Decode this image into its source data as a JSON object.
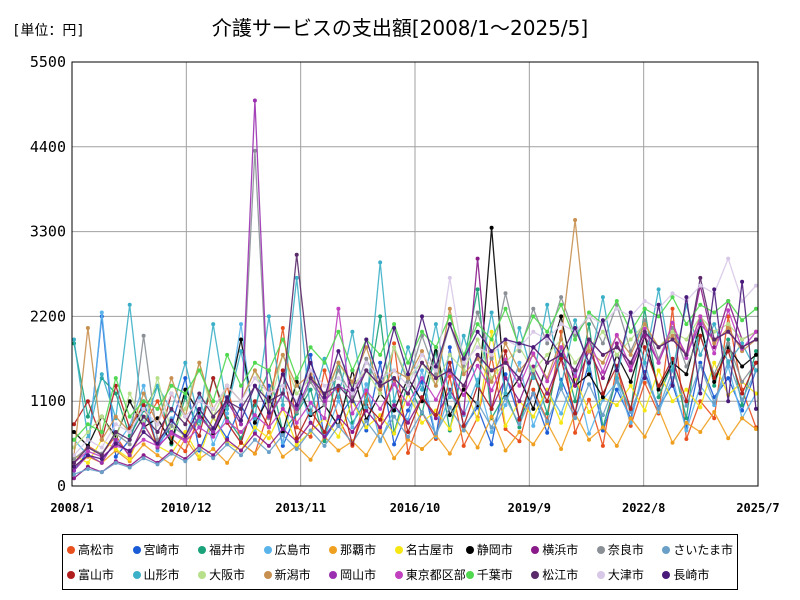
{
  "unit_label": "[単位：円]",
  "chart_data": {
    "type": "line",
    "title": "介護サービスの支出額[2008/1～2025/5]",
    "xlabel": "",
    "ylabel": "",
    "ylim": [
      0,
      5500
    ],
    "yticks": [
      "0",
      "1100",
      "2200",
      "3300",
      "4400",
      "5500"
    ],
    "xticks": [
      "2008/1",
      "2010/12",
      "2013/11",
      "2016/10",
      "2019/9",
      "2022/8",
      "2025/7"
    ],
    "x_range": [
      "2008-01",
      "2025-07"
    ],
    "grid": true,
    "legend_position": "bottom",
    "series": [
      {
        "name": "高松市",
        "color": "#e8501e",
        "values": [
          300,
          520,
          410,
          650,
          380,
          800,
          1100,
          620,
          450,
          900,
          700,
          1300,
          560,
          420,
          980,
          2050,
          760,
          640,
          1500,
          880,
          520,
          1200,
          700,
          1850,
          430,
          960,
          610,
          1420,
          520,
          890,
          1680,
          740,
          580,
          1250,
          860,
          2000,
          690,
          1120,
          520,
          1560,
          780,
          1340,
          940,
          2300,
          610,
          1100,
          880,
          2200,
          1250,
          760
        ]
      },
      {
        "name": "宮崎市",
        "color": "#1a5bd6",
        "values": [
          200,
          450,
          2200,
          380,
          600,
          1100,
          520,
          780,
          1400,
          460,
          890,
          620,
          1050,
          700,
          1300,
          520,
          940,
          1700,
          610,
          880,
          1150,
          720,
          1600,
          540,
          980,
          1350,
          630,
          1800,
          760,
          1020,
          540,
          1450,
          880,
          1200,
          690,
          1380,
          950,
          1600,
          720,
          1250,
          880,
          1480,
          1020,
          1320,
          760,
          1600,
          1150,
          1400,
          980,
          1500
        ]
      },
      {
        "name": "福井市",
        "color": "#1aa37a",
        "values": [
          1850,
          900,
          1400,
          1200,
          650,
          980,
          1300,
          540,
          1150,
          760,
          1400,
          880,
          620,
          1050,
          1500,
          700,
          940,
          1250,
          580,
          1600,
          820,
          1100,
          2200,
          690,
          1350,
          940,
          1750,
          720,
          1600,
          2550,
          880,
          1200,
          760,
          1500,
          940,
          1800,
          1100,
          2100,
          760,
          1400,
          980,
          2300,
          1150,
          1600,
          880,
          2150,
          1300,
          1900,
          1050,
          1750
        ]
      },
      {
        "name": "広島市",
        "color": "#5ab4ea",
        "values": [
          600,
          400,
          2250,
          520,
          780,
          1300,
          460,
          880,
          620,
          1150,
          540,
          940,
          2100,
          700,
          1250,
          560,
          1400,
          820,
          640,
          1100,
          760,
          1320,
          580,
          1000,
          860,
          1500,
          640,
          1200,
          920,
          1380,
          700,
          1050,
          1600,
          780,
          1240,
          940,
          1450,
          680,
          1120,
          1350,
          820,
          1600,
          960,
          1400,
          720,
          1300,
          1050,
          1550,
          880,
          1200
        ]
      },
      {
        "name": "那覇市",
        "color": "#f0a020",
        "values": [
          250,
          380,
          300,
          460,
          320,
          540,
          400,
          280,
          620,
          350,
          480,
          300,
          560,
          420,
          700,
          380,
          520,
          340,
          640,
          460,
          580,
          400,
          720,
          360,
          600,
          480,
          660,
          420,
          760,
          500,
          900,
          460,
          700,
          540,
          820,
          480,
          940,
          600,
          760,
          520,
          880,
          640,
          1000,
          560,
          820,
          700,
          960,
          620,
          880,
          740
        ]
      },
      {
        "name": "名古屋市",
        "color": "#f5e614",
        "values": [
          400,
          300,
          600,
          480,
          350,
          800,
          520,
          420,
          700,
          380,
          900,
          560,
          460,
          760,
          620,
          1000,
          540,
          700,
          880,
          640,
          1100,
          760,
          920,
          680,
          1200,
          820,
          980,
          740,
          1300,
          860,
          2000,
          780,
          1100,
          900,
          1250,
          820,
          1400,
          960,
          1150,
          1050,
          1300,
          980,
          1500,
          1100,
          1250,
          1020,
          1600,
          1180,
          1350,
          1200
        ]
      },
      {
        "name": "静岡市",
        "color": "#000000",
        "values": [
          700,
          520,
          900,
          640,
          1100,
          760,
          880,
          560,
          1250,
          940,
          680,
          1050,
          1900,
          820,
          1150,
          700,
          1350,
          920,
          1050,
          780,
          1500,
          860,
          1200,
          980,
          1400,
          1100,
          1800,
          920,
          1250,
          1050,
          3350,
          1150,
          1400,
          1000,
          1600,
          2200,
          1300,
          1450,
          1150,
          1700,
          1350,
          1950,
          1250,
          1600,
          1450,
          2100,
          1350,
          1800,
          1550,
          1700
        ]
      },
      {
        "name": "横浜市",
        "color": "#8a1a8a",
        "values": [
          100,
          250,
          180,
          320,
          260,
          400,
          300,
          450,
          350,
          520,
          400,
          600,
          460,
          680,
          520,
          740,
          580,
          820,
          640,
          900,
          700,
          980,
          760,
          1050,
          820,
          1150,
          880,
          1250,
          940,
          2950,
          1000,
          1400,
          1100,
          1550,
          1200,
          1650,
          1300,
          1750,
          1400,
          1850,
          1500,
          1950,
          1600,
          2050,
          1700,
          2600,
          1800,
          2400,
          1900,
          2000
        ]
      },
      {
        "name": "奈良市",
        "color": "#8a9096",
        "values": [
          350,
          500,
          420,
          680,
          540,
          1950,
          600,
          780,
          650,
          900,
          720,
          1100,
          800,
          4350,
          880,
          1200,
          960,
          1350,
          1050,
          1500,
          1150,
          1650,
          1250,
          1800,
          1350,
          1950,
          1450,
          2100,
          1550,
          2250,
          1650,
          2500,
          1750,
          2300,
          1850,
          2450,
          1950,
          2200,
          1850,
          2350,
          1750,
          2150,
          1650,
          2050,
          1550,
          1950,
          1450,
          1850,
          1350,
          1600
        ]
      },
      {
        "name": "さいたま市",
        "color": "#6aa0c8",
        "values": [
          150,
          220,
          180,
          300,
          240,
          360,
          280,
          420,
          320,
          480,
          360,
          540,
          400,
          600,
          440,
          660,
          480,
          720,
          520,
          780,
          560,
          840,
          600,
          900,
          640,
          960,
          680,
          1020,
          720,
          1080,
          760,
          1140,
          800,
          1200,
          840,
          1260,
          880,
          1320,
          920,
          1380,
          960,
          1440,
          1000,
          1500,
          1040,
          1560,
          1080,
          1620,
          1120,
          1500
        ]
      },
      {
        "name": "富山市",
        "color": "#b01e1e",
        "values": [
          800,
          1100,
          600,
          1300,
          750,
          1050,
          500,
          1200,
          900,
          650,
          1400,
          820,
          560,
          1100,
          760,
          1500,
          620,
          980,
          700,
          1250,
          540,
          1050,
          860,
          1400,
          700,
          1150,
          920,
          1600,
          780,
          1300,
          1000,
          1750,
          860,
          1450,
          1100,
          1650,
          940,
          1900,
          1200,
          1550,
          1000,
          1800,
          1300,
          1650,
          1100,
          1950,
          1400,
          1750,
          1200,
          1600
        ]
      },
      {
        "name": "山形市",
        "color": "#3cb0c8",
        "values": [
          1900,
          620,
          1450,
          880,
          2350,
          760,
          1300,
          980,
          1600,
          840,
          2100,
          1000,
          1750,
          880,
          2200,
          1050,
          2700,
          940,
          1650,
          1150,
          2000,
          1020,
          2900,
          1100,
          1800,
          1250,
          2100,
          1150,
          1950,
          1300,
          2250,
          1200,
          2050,
          1400,
          2350,
          1300,
          2150,
          1500,
          2450,
          1400,
          2250,
          1600,
          2550,
          1500,
          2350,
          1700,
          2100,
          1600,
          1850,
          1500
        ]
      },
      {
        "name": "大阪市",
        "color": "#b8e08a",
        "values": [
          500,
          700,
          900,
          600,
          1200,
          800,
          1400,
          700,
          1000,
          1600,
          900,
          1300,
          1100,
          1500,
          1000,
          1700,
          1200,
          1400,
          1100,
          1600,
          1300,
          1500,
          1200,
          1800,
          1400,
          1600,
          1300,
          1700,
          1500,
          1900,
          1400,
          1600,
          1800,
          1500,
          1700,
          1900,
          1600,
          1800,
          2000,
          1700,
          1900,
          2100,
          1800,
          2000,
          1900,
          2200,
          2000,
          2100,
          1900,
          2000
        ]
      },
      {
        "name": "新潟市",
        "color": "#c89050",
        "values": [
          400,
          2050,
          600,
          900,
          700,
          1200,
          800,
          1400,
          900,
          1600,
          1000,
          1300,
          1100,
          1500,
          1200,
          1700,
          1300,
          1450,
          1150,
          1600,
          1350,
          1800,
          1250,
          1500,
          1400,
          1750,
          1300,
          2300,
          1450,
          1650,
          1350,
          1850,
          1500,
          1700,
          1400,
          1900,
          3450,
          1750,
          1600,
          1950,
          1700,
          2100,
          1800,
          1950,
          1700,
          2200,
          1850,
          2050,
          1750,
          1900
        ]
      },
      {
        "name": "岡山市",
        "color": "#9a30b0",
        "values": [
          200,
          400,
          300,
          600,
          400,
          800,
          500,
          700,
          600,
          900,
          700,
          1100,
          800,
          5000,
          900,
          1200,
          1000,
          1400,
          1100,
          1300,
          1200,
          1500,
          1300,
          1400,
          1200,
          1600,
          1400,
          1500,
          1300,
          1700,
          1500,
          1600,
          1400,
          1800,
          1600,
          1700,
          1500,
          1900,
          1700,
          1800,
          1600,
          2000,
          1800,
          1900,
          1700,
          2100,
          1900,
          2000,
          1800,
          1900
        ]
      },
      {
        "name": "東京都区部",
        "color": "#c040c0",
        "values": [
          300,
          450,
          380,
          520,
          460,
          600,
          520,
          680,
          580,
          760,
          640,
          840,
          700,
          920,
          760,
          1000,
          820,
          1080,
          880,
          2300,
          940,
          1240,
          1000,
          1320,
          1060,
          1400,
          1120,
          1480,
          1180,
          1560,
          1240,
          1640,
          1300,
          1720,
          1360,
          1800,
          1420,
          1880,
          1480,
          1960,
          1540,
          2040,
          1600,
          2120,
          1660,
          2200,
          1720,
          2280,
          1780,
          2000
        ]
      },
      {
        "name": "千葉市",
        "color": "#50d850",
        "values": [
          600,
          800,
          700,
          1400,
          900,
          1100,
          1000,
          1300,
          1200,
          1500,
          1100,
          1700,
          1300,
          1600,
          1500,
          1900,
          1400,
          1800,
          1600,
          2000,
          1500,
          1900,
          1700,
          2100,
          1600,
          2000,
          1800,
          2200,
          1700,
          2100,
          1900,
          2300,
          1800,
          2200,
          2000,
          2350,
          1900,
          2250,
          2100,
          2400,
          2000,
          2300,
          2200,
          2450,
          2100,
          2350,
          2250,
          2400,
          2150,
          2300
        ]
      },
      {
        "name": "松江市",
        "color": "#5a2a6a",
        "values": [
          300,
          500,
          400,
          700,
          600,
          900,
          700,
          1000,
          800,
          1200,
          900,
          1100,
          1000,
          1300,
          1100,
          1200,
          3000,
          1400,
          1200,
          1300,
          1100,
          1500,
          1300,
          1400,
          1200,
          1600,
          1400,
          1500,
          1300,
          1700,
          1500,
          1600,
          1400,
          1800,
          1600,
          1700,
          1500,
          1900,
          1700,
          1800,
          1600,
          2000,
          1800,
          1900,
          1700,
          2700,
          1900,
          2000,
          1800,
          1900
        ]
      },
      {
        "name": "大津市",
        "color": "#d8c8e8",
        "values": [
          400,
          600,
          500,
          800,
          700,
          1000,
          800,
          1200,
          900,
          1100,
          1000,
          1300,
          1100,
          1400,
          1200,
          1300,
          1100,
          1500,
          1300,
          1400,
          1200,
          1600,
          1400,
          1500,
          1300,
          1700,
          1500,
          2700,
          1600,
          1800,
          1700,
          1900,
          1800,
          2000,
          1900,
          2100,
          2000,
          2200,
          2100,
          2300,
          2200,
          2400,
          2300,
          2500,
          2400,
          2600,
          2500,
          2950,
          2400,
          2600
        ]
      },
      {
        "name": "長崎市",
        "color": "#4a1a7a",
        "values": [
          250,
          400,
          350,
          550,
          450,
          700,
          550,
          850,
          650,
          1000,
          750,
          1150,
          850,
          1300,
          950,
          1450,
          1050,
          1600,
          1150,
          1750,
          1250,
          1900,
          1350,
          2050,
          1450,
          2200,
          1550,
          2100,
          1650,
          2000,
          1750,
          1900,
          1850,
          1800,
          1950,
          1700,
          2050,
          1600,
          2150,
          1500,
          2250,
          1400,
          2350,
          1300,
          2450,
          1200,
          2550,
          1100,
          2650,
          1000
        ]
      }
    ]
  }
}
